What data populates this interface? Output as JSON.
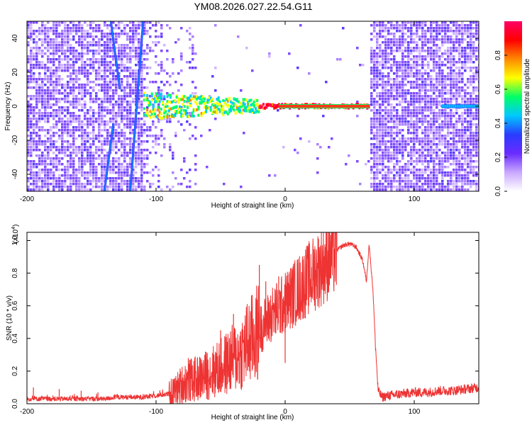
{
  "figure": {
    "title": "YM08.2026.027.22.54.G11"
  },
  "chart_data": [
    {
      "type": "heatmap",
      "title": "YM08.2026.027.22.54.G11",
      "xlabel": "Height of straight line (km)",
      "ylabel": "Frequency (Hz)",
      "xlim": [
        -200,
        150
      ],
      "ylim": [
        -50,
        50
      ],
      "xticks": [
        "-200",
        "-100",
        "0",
        "100"
      ],
      "yticks": [
        "-40",
        "-20",
        "0",
        "20",
        "40"
      ],
      "colorbar": {
        "label": "Normalized spectral amplitude",
        "range": [
          0,
          1
        ],
        "ticks": [
          "0.0",
          "0.2",
          "0.4",
          "0.6",
          "0.8"
        ],
        "colors": [
          "#ffffff",
          "#c9a8ff",
          "#6a2bff",
          "#2a3cff",
          "#00c8ff",
          "#00ff66",
          "#ffff00",
          "#ff8800",
          "#ff0000",
          "#ff0066"
        ]
      },
      "regions": [
        {
          "name": "noise-left",
          "x": [
            -200,
            -110
          ],
          "amplitude": 0.2
        },
        {
          "name": "signal-line",
          "x": [
            -110,
            65
          ],
          "freq_hz": 0,
          "amplitude": 1.0
        },
        {
          "name": "blank-region",
          "x": [
            -95,
            65
          ],
          "amplitude": 0.0
        },
        {
          "name": "noise-right",
          "x": [
            65,
            150
          ],
          "amplitude": 0.2
        },
        {
          "name": "weak-line-right",
          "x": [
            122,
            150
          ],
          "freq_hz": 0,
          "amplitude": 0.35
        }
      ],
      "diagonal_tracks": [
        {
          "x_start": -140,
          "x_end": -133,
          "y_start": -50,
          "y_end": -10
        },
        {
          "x_start": -120,
          "x_end": -110,
          "y_start": -50,
          "y_end": 50
        },
        {
          "x_start": -135,
          "x_end": -128,
          "y_start": 50,
          "y_end": 10
        }
      ]
    },
    {
      "type": "line",
      "title": "",
      "xlabel": "Height of straight line (km)",
      "ylabel": "SNR (10 * v/v)",
      "exponent_label": "(x10",
      "exponent_power": "4",
      "exponent_close": ")",
      "xlim": [
        -200,
        150
      ],
      "ylim": [
        0,
        1.05
      ],
      "xticks": [
        "-200",
        "-100",
        "0",
        "100"
      ],
      "yticks": [
        "0.0",
        "0.2",
        "0.4",
        "0.6",
        "0.8",
        "1.0"
      ],
      "series": [
        {
          "name": "SNR",
          "color": "#ee3333",
          "x": [
            -200,
            -190,
            -180,
            -170,
            -160,
            -150,
            -140,
            -130,
            -120,
            -110,
            -100,
            -90,
            -85,
            -80,
            -75,
            -70,
            -65,
            -60,
            -55,
            -50,
            -45,
            -40,
            -35,
            -30,
            -25,
            -20,
            -15,
            -10,
            -5,
            0,
            5,
            10,
            15,
            20,
            25,
            30,
            35,
            40,
            45,
            50,
            55,
            60,
            63,
            65,
            68,
            70,
            72,
            75,
            80,
            90,
            100,
            110,
            120,
            130,
            140,
            150
          ],
          "values": [
            0.03,
            0.03,
            0.03,
            0.03,
            0.03,
            0.03,
            0.03,
            0.04,
            0.04,
            0.04,
            0.05,
            0.06,
            0.08,
            0.12,
            0.14,
            0.15,
            0.16,
            0.18,
            0.2,
            0.22,
            0.25,
            0.28,
            0.3,
            0.36,
            0.4,
            0.45,
            0.5,
            0.55,
            0.58,
            0.62,
            0.66,
            0.7,
            0.74,
            0.78,
            0.82,
            0.86,
            0.9,
            0.94,
            0.97,
            0.98,
            0.96,
            0.88,
            0.75,
            0.98,
            0.7,
            0.35,
            0.08,
            0.04,
            0.05,
            0.06,
            0.07,
            0.07,
            0.08,
            0.08,
            0.09,
            0.1
          ],
          "spikes": [
            {
              "x": -195,
              "y": 0.1
            },
            {
              "x": -175,
              "y": 0.09
            },
            {
              "x": -158,
              "y": 0.08
            },
            {
              "x": -145,
              "y": 0.07
            },
            {
              "x": -130,
              "y": 0.06
            },
            {
              "x": -110,
              "y": 0.06
            },
            {
              "x": -75,
              "y": 0.28
            },
            {
              "x": -50,
              "y": 0.45
            },
            {
              "x": -40,
              "y": 0.55
            },
            {
              "x": -20,
              "y": 0.85
            },
            {
              "x": -15,
              "y": 0.75
            },
            {
              "x": -5,
              "y": 0.78
            },
            {
              "x": 0,
              "y": 0.25
            }
          ]
        }
      ]
    }
  ]
}
